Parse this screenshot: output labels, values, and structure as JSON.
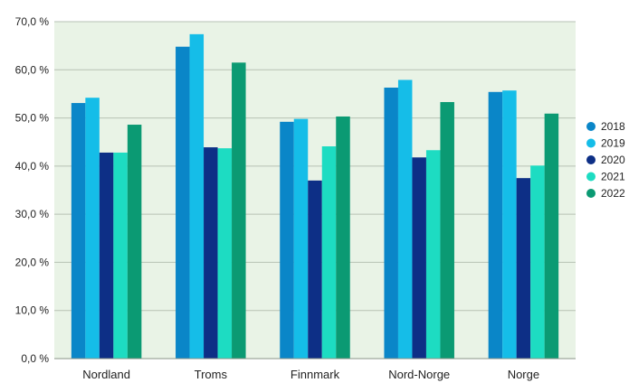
{
  "chart_data": {
    "type": "bar",
    "categories": [
      "Nordland",
      "Troms",
      "Finnmark",
      "Nord-Norge",
      "Norge"
    ],
    "series": [
      {
        "name": "2018",
        "color": "#0a86c8",
        "values": [
          53.1,
          64.8,
          49.2,
          56.3,
          55.4
        ]
      },
      {
        "name": "2019",
        "color": "#15bde8",
        "values": [
          54.2,
          67.4,
          49.8,
          57.9,
          55.7
        ]
      },
      {
        "name": "2020",
        "color": "#0d2f86",
        "values": [
          42.8,
          43.9,
          37.0,
          41.8,
          37.5
        ]
      },
      {
        "name": "2021",
        "color": "#1ddcc2",
        "values": [
          42.8,
          43.7,
          44.1,
          43.3,
          40.1
        ]
      },
      {
        "name": "2022",
        "color": "#0b9a73",
        "values": [
          48.6,
          61.5,
          50.3,
          53.3,
          50.9
        ]
      }
    ],
    "yticks": [
      "0,0 %",
      "10,0 %",
      "20,0 %",
      "30,0 %",
      "40,0 %",
      "50,0 %",
      "60,0 %",
      "70,0 %"
    ],
    "ylim": [
      0,
      70
    ],
    "grid": true,
    "legend": "right",
    "background_color": "#e9f3e6",
    "gridline_color": "#b7c2b4"
  }
}
